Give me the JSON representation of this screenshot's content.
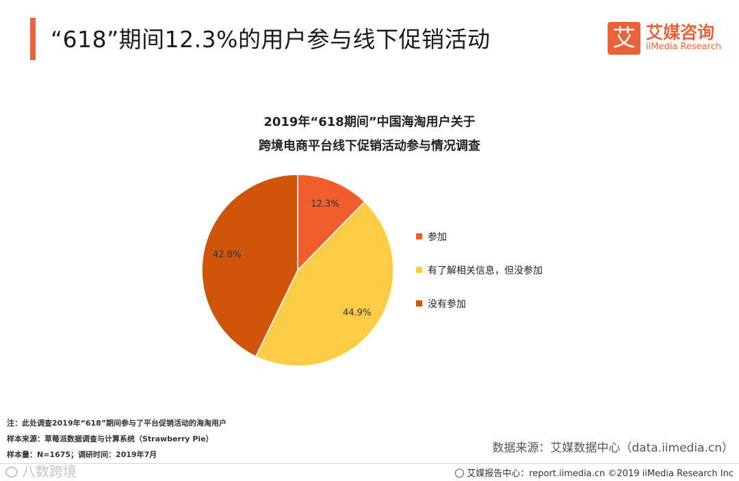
{
  "page": {
    "title": "“618”期间12.3%的用户参与线下促销活动",
    "accent_color": "#e8633a"
  },
  "brand": {
    "icon_glyph": "艾",
    "name_cn": "艾媒咨询",
    "name_en": "iiMedia Research"
  },
  "chart_data": {
    "type": "pie",
    "title_line1": "2019年“618期间”中国海淘用户关于",
    "title_line2": "跨境电商平台线下促销活动参与情况调查",
    "slices": [
      {
        "name": "参加",
        "value": 12.3,
        "label": "12.3%",
        "color": "#f05e2c"
      },
      {
        "name": "有了解相关信息，但没参加",
        "value": 44.9,
        "label": "44.9%",
        "color": "#fccc46"
      },
      {
        "name": "没有参加",
        "value": 42.8,
        "label": "42.8%",
        "color": "#cf5508"
      }
    ],
    "start_angle_deg": 0,
    "direction": "clockwise",
    "legend_position": "right"
  },
  "notes": {
    "line1": "注：此处调查2019年“618”期间参与了平台促销活动的海淘用户",
    "line2": "样本来源：草莓派数据调查与计算系统（Strawberry  Pie）",
    "line3": "样本量：N=1675；调研时间：2019年7月"
  },
  "source": {
    "text": "数据来源：艾媒数据中心（data.iimedia.cn）"
  },
  "footer": {
    "text": "艾媒报告中心：report.iimedia.cn  ©2019  iiMedia Research  Inc"
  },
  "watermark": {
    "text": "八数跨境"
  }
}
